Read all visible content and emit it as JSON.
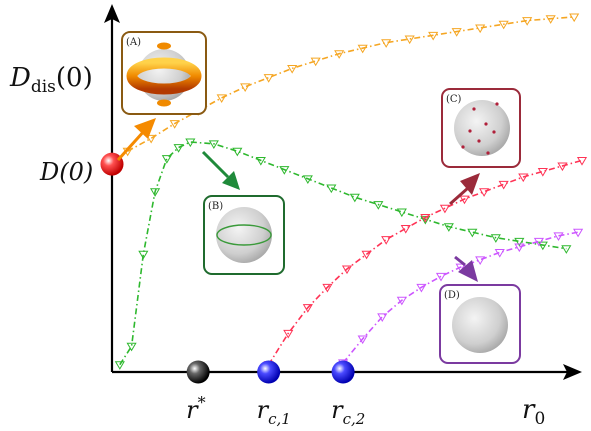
{
  "chart_data": {
    "type": "line",
    "title": "",
    "axis_labels": {
      "y_base": "D",
      "y_sub": "dis",
      "y_arg": "(0)",
      "x_base": "r",
      "x_sub": "0"
    },
    "y_marker_label": "D(0)",
    "x_markers": [
      {
        "name": "r*",
        "base": "r",
        "sup": "*",
        "sub": "",
        "x": 2.2,
        "color": "#111111"
      },
      {
        "name": "r_c,1",
        "base": "r",
        "sup": "",
        "sub": "c,1",
        "x": 4.0,
        "color": "#1a1aff"
      },
      {
        "name": "r_c,2",
        "base": "r",
        "sup": "",
        "sub": "c,2",
        "x": 5.9,
        "color": "#1a1aff"
      }
    ],
    "xlim": [
      0,
      12
    ],
    "ylim": [
      0,
      10
    ],
    "D0": 5.65,
    "series": [
      {
        "color": "#f5a623",
        "x": [
          0.4,
          1.0,
          1.6,
          2.2,
          2.8,
          3.4,
          4.0,
          4.6,
          5.2,
          5.8,
          6.4,
          7.0,
          7.6,
          8.2,
          8.8,
          9.4,
          10.0,
          10.6,
          11.2,
          11.8
        ],
        "y": [
          6.0,
          6.35,
          6.75,
          7.1,
          7.45,
          7.75,
          8.0,
          8.25,
          8.45,
          8.65,
          8.8,
          8.95,
          9.05,
          9.15,
          9.25,
          9.35,
          9.45,
          9.55,
          9.6,
          9.65
        ]
      },
      {
        "color": "#2eb82e",
        "x": [
          0.2,
          0.5,
          0.8,
          1.1,
          1.4,
          1.7,
          2.0,
          2.6,
          3.2,
          3.8,
          4.4,
          5.0,
          5.6,
          6.2,
          6.8,
          7.4,
          8.0,
          8.6,
          9.2,
          9.8,
          10.4,
          11.0,
          11.6
        ],
        "y": [
          0.2,
          0.7,
          3.2,
          4.9,
          5.8,
          6.1,
          6.25,
          6.2,
          6.0,
          5.75,
          5.5,
          5.25,
          5.0,
          4.75,
          4.55,
          4.35,
          4.15,
          3.95,
          3.8,
          3.65,
          3.55,
          3.45,
          3.35
        ]
      },
      {
        "color": "#ff3355",
        "x": [
          4.0,
          4.5,
          5.0,
          5.5,
          6.0,
          6.5,
          7.0,
          7.5,
          8.0,
          8.5,
          9.0,
          9.5,
          10.0,
          10.5,
          11.0,
          11.5,
          12.0
        ],
        "y": [
          0.2,
          1.05,
          1.75,
          2.3,
          2.8,
          3.2,
          3.6,
          3.9,
          4.2,
          4.45,
          4.7,
          4.9,
          5.1,
          5.3,
          5.45,
          5.6,
          5.75
        ]
      },
      {
        "color": "#cc55ff",
        "x": [
          5.9,
          6.4,
          6.9,
          7.4,
          7.9,
          8.4,
          8.9,
          9.4,
          9.9,
          10.4,
          10.9,
          11.4,
          11.9
        ],
        "y": [
          0.25,
          0.9,
          1.5,
          1.95,
          2.3,
          2.6,
          2.85,
          3.05,
          3.25,
          3.4,
          3.55,
          3.7,
          3.8
        ]
      }
    ],
    "insets": [
      {
        "label": "(A)",
        "frame_color": "#8a5a12",
        "content": "torus"
      },
      {
        "label": "(B)",
        "frame_color": "#1f6b2e",
        "content": "ring"
      },
      {
        "label": "(C)",
        "frame_color": "#9b2a3a",
        "content": "points"
      },
      {
        "label": "(D)",
        "frame_color": "#7b3aa0",
        "content": "plain"
      }
    ],
    "grid": false,
    "legend": "none"
  }
}
